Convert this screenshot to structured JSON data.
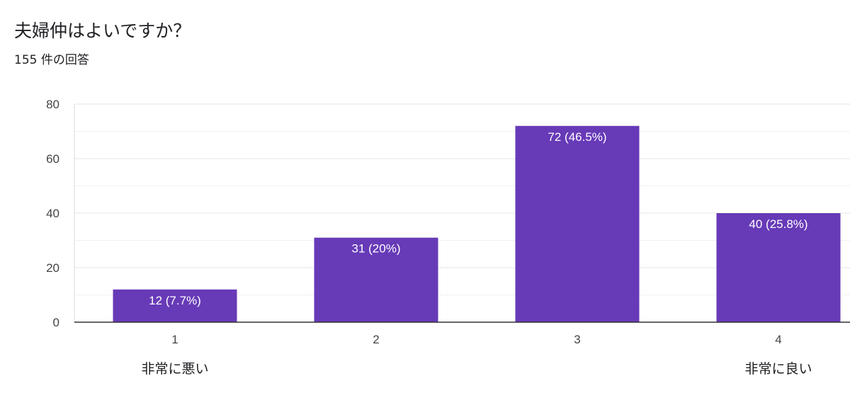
{
  "header": {
    "title": "夫婦仲はよいですか？",
    "subtitle": "155 件の回答"
  },
  "chart_data": {
    "type": "bar",
    "categories": [
      "1",
      "2",
      "3",
      "4"
    ],
    "values": [
      12,
      31,
      72,
      40
    ],
    "data_labels": [
      "12 (7.7%)",
      "31 (20%)",
      "72 (46.5%)",
      "40 (25.8%)"
    ],
    "yticks": [
      "0",
      "20",
      "40",
      "60",
      "80"
    ],
    "ylim": [
      0,
      80
    ],
    "scale_labels": {
      "low": "非常に悪い",
      "high": "非常に良い"
    },
    "bar_color": "#673ab7",
    "grid": true
  }
}
